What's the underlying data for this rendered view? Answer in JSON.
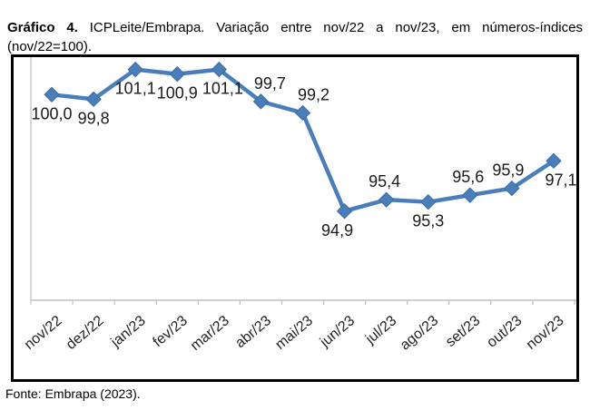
{
  "title": {
    "bold": "Gráfico 4.",
    "rest": " ICPLeite/Embrapa. Variação entre nov/22 a nov/23, em números-índices (nov/22=100)."
  },
  "source": "Fonte: Embrapa (2023).",
  "chart_data": {
    "type": "line",
    "title": "ICPLeite/Embrapa. Variação entre nov/22 a nov/23, em números-índices (nov/22=100)",
    "categories": [
      "nov/22",
      "dez/22",
      "jan/23",
      "fev/23",
      "mar/23",
      "abr/23",
      "mai/23",
      "jun/23",
      "jul/23",
      "ago/23",
      "set/23",
      "out/23",
      "nov/23"
    ],
    "values": [
      100.0,
      99.8,
      101.1,
      100.9,
      101.1,
      99.7,
      99.2,
      94.9,
      95.4,
      95.3,
      95.6,
      95.9,
      97.1
    ],
    "data_labels": [
      "100,0",
      "99,8",
      "101,1",
      "100,9",
      "101,1",
      "99,7",
      "99,2",
      "94,9",
      "95,4",
      "95,3",
      "95,6",
      "95,9",
      "97,1"
    ],
    "label_placement": [
      "below",
      "below",
      "below",
      "below",
      "below",
      "above",
      "above",
      "below",
      "above",
      "below",
      "above",
      "above",
      "below"
    ],
    "label_dx": [
      0,
      0,
      0,
      0,
      4,
      10,
      12,
      -8,
      -2,
      0,
      -2,
      -4,
      8
    ],
    "xlabel": "",
    "ylabel": "",
    "ylim": [
      91,
      101.6
    ],
    "grid": false,
    "legend": "none",
    "line_color": "#4a7ebb",
    "marker_edge_color": "#3c6ba5",
    "axis_color": "#bfbfbf",
    "label_color": "#1a1a1a"
  }
}
